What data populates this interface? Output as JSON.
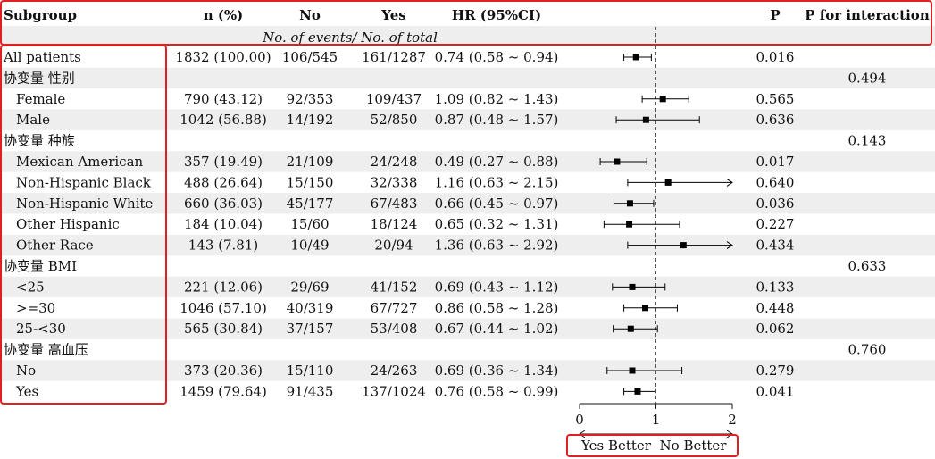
{
  "headers": {
    "subgroup": "Subgroup",
    "n": "n (%)",
    "no": "No",
    "yes": "Yes",
    "hr": "HR (95%CI)",
    "p": "P",
    "p_int": "P for interaction",
    "subheader": "No. of events/ No. of total"
  },
  "chart_data": {
    "type": "table",
    "plot_type": "forest",
    "reference_line": 1,
    "xlim": [
      0,
      2
    ],
    "x_ticks": [
      "0",
      "1",
      "2"
    ],
    "axis_label_left": "Yes Better",
    "axis_label_right": "No Better",
    "rows": [
      {
        "label": "All patients",
        "indent": false,
        "n": "1832 (100.00)",
        "no": "106/545",
        "yes": "161/1287",
        "hr_text": "0.74 (0.58 ~ 0.94)",
        "hr": 0.74,
        "lo": 0.58,
        "hi": 0.94,
        "p": "0.016",
        "p_int": ""
      },
      {
        "label": "协变量 性别",
        "indent": false,
        "n": "",
        "no": "",
        "yes": "",
        "hr_text": "",
        "p": "",
        "p_int": "0.494"
      },
      {
        "label": "Female",
        "indent": true,
        "n": "790 (43.12)",
        "no": "92/353",
        "yes": "109/437",
        "hr_text": "1.09 (0.82 ~ 1.43)",
        "hr": 1.09,
        "lo": 0.82,
        "hi": 1.43,
        "p": "0.565",
        "p_int": ""
      },
      {
        "label": "Male",
        "indent": true,
        "n": "1042 (56.88)",
        "no": "14/192",
        "yes": "52/850",
        "hr_text": "0.87 (0.48 ~ 1.57)",
        "hr": 0.87,
        "lo": 0.48,
        "hi": 1.57,
        "p": "0.636",
        "p_int": ""
      },
      {
        "label": "协变量 种族",
        "indent": false,
        "n": "",
        "no": "",
        "yes": "",
        "hr_text": "",
        "p": "",
        "p_int": "0.143"
      },
      {
        "label": "Mexican American",
        "indent": true,
        "n": "357 (19.49)",
        "no": "21/109",
        "yes": "24/248",
        "hr_text": "0.49 (0.27 ~ 0.88)",
        "hr": 0.49,
        "lo": 0.27,
        "hi": 0.88,
        "p": "0.017",
        "p_int": ""
      },
      {
        "label": "Non-Hispanic Black",
        "indent": true,
        "n": "488 (26.64)",
        "no": "15/150",
        "yes": "32/338",
        "hr_text": "1.16 (0.63 ~ 2.15)",
        "hr": 1.16,
        "lo": 0.63,
        "hi": 2.15,
        "p": "0.640",
        "p_int": ""
      },
      {
        "label": "Non-Hispanic White",
        "indent": true,
        "n": "660 (36.03)",
        "no": "45/177",
        "yes": "67/483",
        "hr_text": "0.66 (0.45 ~ 0.97)",
        "hr": 0.66,
        "lo": 0.45,
        "hi": 0.97,
        "p": "0.036",
        "p_int": ""
      },
      {
        "label": "Other Hispanic",
        "indent": true,
        "n": "184 (10.04)",
        "no": "15/60",
        "yes": "18/124",
        "hr_text": "0.65 (0.32 ~ 1.31)",
        "hr": 0.65,
        "lo": 0.32,
        "hi": 1.31,
        "p": "0.227",
        "p_int": ""
      },
      {
        "label": "Other Race",
        "indent": true,
        "n": "143 (7.81)",
        "no": "10/49",
        "yes": "20/94",
        "hr_text": "1.36 (0.63 ~ 2.92)",
        "hr": 1.36,
        "lo": 0.63,
        "hi": 2.92,
        "p": "0.434",
        "p_int": ""
      },
      {
        "label": "协变量 BMI",
        "indent": false,
        "n": "",
        "no": "",
        "yes": "",
        "hr_text": "",
        "p": "",
        "p_int": "0.633"
      },
      {
        "label": "<25",
        "indent": true,
        "n": "221 (12.06)",
        "no": "29/69",
        "yes": "41/152",
        "hr_text": "0.69 (0.43 ~ 1.12)",
        "hr": 0.69,
        "lo": 0.43,
        "hi": 1.12,
        "p": "0.133",
        "p_int": ""
      },
      {
        "label": ">=30",
        "indent": true,
        "n": "1046 (57.10)",
        "no": "40/319",
        "yes": "67/727",
        "hr_text": "0.86 (0.58 ~ 1.28)",
        "hr": 0.86,
        "lo": 0.58,
        "hi": 1.28,
        "p": "0.448",
        "p_int": ""
      },
      {
        "label": "25-<30",
        "indent": true,
        "n": "565 (30.84)",
        "no": "37/157",
        "yes": "53/408",
        "hr_text": "0.67 (0.44 ~ 1.02)",
        "hr": 0.67,
        "lo": 0.44,
        "hi": 1.02,
        "p": "0.062",
        "p_int": ""
      },
      {
        "label": "协变量 高血压",
        "indent": false,
        "n": "",
        "no": "",
        "yes": "",
        "hr_text": "",
        "p": "",
        "p_int": "0.760"
      },
      {
        "label": "No",
        "indent": true,
        "n": "373 (20.36)",
        "no": "15/110",
        "yes": "24/263",
        "hr_text": "0.69 (0.36 ~ 1.34)",
        "hr": 0.69,
        "lo": 0.36,
        "hi": 1.34,
        "p": "0.279",
        "p_int": ""
      },
      {
        "label": "Yes",
        "indent": true,
        "n": "1459 (79.64)",
        "no": "91/435",
        "yes": "137/1024",
        "hr_text": "0.76 (0.58 ~ 0.99)",
        "hr": 0.76,
        "lo": 0.58,
        "hi": 0.99,
        "p": "0.041",
        "p_int": ""
      }
    ]
  },
  "colors": {
    "stripe": "#eeeeee",
    "highlight": "#e02020",
    "ref_line": "#555555",
    "marker": "#000000"
  }
}
